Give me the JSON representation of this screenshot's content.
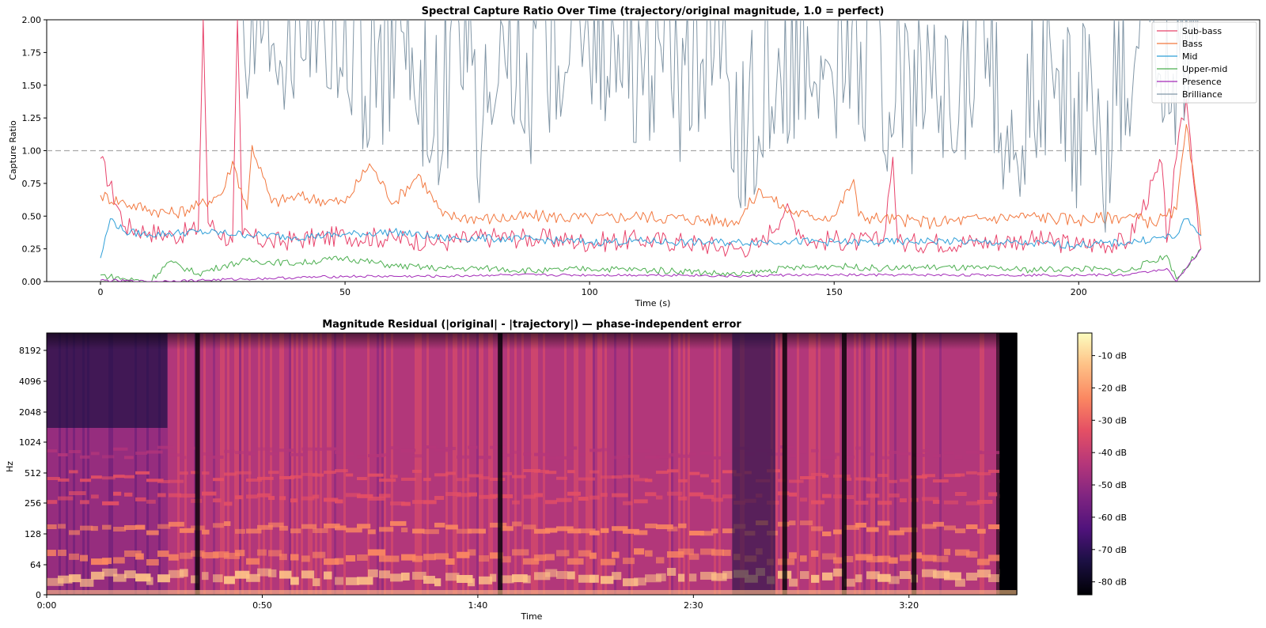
{
  "chart_data": [
    {
      "type": "line",
      "title": "Spectral Capture Ratio Over Time (trajectory/original magnitude, 1.0 = perfect)",
      "xlabel": "Time (s)",
      "ylabel": "Capture Ratio",
      "xlim": [
        -11,
        237
      ],
      "ylim": [
        0,
        2.0
      ],
      "x_ticks": [
        "0",
        "50",
        "100",
        "150",
        "200"
      ],
      "y_ticks": [
        "0.00",
        "0.25",
        "0.50",
        "0.75",
        "1.00",
        "1.25",
        "1.50",
        "1.75",
        "2.00"
      ],
      "reference_line": 1.0,
      "legend_position": "top-right",
      "series": [
        {
          "name": "Sub-bass",
          "color": "#e8436b",
          "x": [
            0,
            5,
            10,
            15,
            20,
            21,
            22,
            27,
            28,
            29,
            35,
            40,
            50,
            60,
            70,
            80,
            90,
            100,
            110,
            120,
            130,
            135,
            140,
            145,
            150,
            155,
            160,
            162,
            163,
            165,
            170,
            180,
            190,
            200,
            210,
            217,
            218,
            220,
            222,
            225
          ],
          "values": [
            0.94,
            0.42,
            0.38,
            0.35,
            0.4,
            2.0,
            0.45,
            0.3,
            2.0,
            0.35,
            0.3,
            0.32,
            0.35,
            0.33,
            0.3,
            0.34,
            0.33,
            0.3,
            0.32,
            0.3,
            0.25,
            0.28,
            0.55,
            0.3,
            0.32,
            0.3,
            0.31,
            0.95,
            0.3,
            0.29,
            0.3,
            0.3,
            0.32,
            0.28,
            0.3,
            0.9,
            0.3,
            0.95,
            1.4,
            0.25
          ]
        },
        {
          "name": "Bass",
          "color": "#f2783f",
          "x": [
            0,
            5,
            10,
            15,
            20,
            25,
            27,
            30,
            31,
            35,
            40,
            50,
            55,
            60,
            65,
            70,
            80,
            90,
            100,
            110,
            120,
            130,
            135,
            140,
            145,
            150,
            154,
            155,
            160,
            170,
            180,
            190,
            200,
            210,
            215,
            218,
            220,
            222,
            225
          ],
          "values": [
            0.66,
            0.6,
            0.55,
            0.52,
            0.58,
            0.68,
            0.92,
            0.55,
            1.04,
            0.6,
            0.65,
            0.6,
            0.9,
            0.6,
            0.82,
            0.5,
            0.48,
            0.5,
            0.48,
            0.5,
            0.48,
            0.46,
            0.7,
            0.55,
            0.5,
            0.5,
            0.78,
            0.5,
            0.48,
            0.45,
            0.48,
            0.5,
            0.47,
            0.5,
            0.45,
            0.5,
            0.55,
            1.2,
            0.35
          ]
        },
        {
          "name": "Mid",
          "color": "#2e9fd8",
          "x": [
            0,
            2,
            5,
            10,
            20,
            30,
            40,
            50,
            60,
            70,
            80,
            90,
            100,
            110,
            120,
            130,
            140,
            150,
            160,
            170,
            180,
            190,
            200,
            210,
            220,
            222,
            225
          ],
          "values": [
            0.18,
            0.48,
            0.38,
            0.36,
            0.38,
            0.36,
            0.34,
            0.36,
            0.38,
            0.33,
            0.33,
            0.32,
            0.3,
            0.31,
            0.3,
            0.3,
            0.31,
            0.3,
            0.3,
            0.31,
            0.3,
            0.29,
            0.28,
            0.3,
            0.35,
            0.48,
            0.35
          ]
        },
        {
          "name": "Upper-mid",
          "color": "#4caf50",
          "x": [
            0,
            5,
            10,
            14,
            20,
            25,
            30,
            40,
            50,
            60,
            70,
            80,
            90,
            100,
            110,
            120,
            130,
            140,
            150,
            160,
            170,
            180,
            190,
            200,
            210,
            218,
            220,
            225
          ],
          "values": [
            0.05,
            0.02,
            0.0,
            0.15,
            0.06,
            0.12,
            0.16,
            0.14,
            0.18,
            0.12,
            0.1,
            0.1,
            0.08,
            0.1,
            0.09,
            0.08,
            0.05,
            0.1,
            0.12,
            0.1,
            0.11,
            0.1,
            0.09,
            0.1,
            0.08,
            0.2,
            0.02,
            0.25
          ]
        },
        {
          "name": "Presence",
          "color": "#a32ab8",
          "x": [
            0,
            10,
            20,
            30,
            40,
            50,
            60,
            70,
            80,
            90,
            100,
            110,
            120,
            130,
            140,
            150,
            160,
            170,
            180,
            190,
            200,
            210,
            215,
            218,
            220,
            225
          ],
          "values": [
            0.01,
            0.0,
            0.01,
            0.02,
            0.03,
            0.04,
            0.04,
            0.04,
            0.05,
            0.05,
            0.05,
            0.05,
            0.05,
            0.04,
            0.05,
            0.05,
            0.05,
            0.05,
            0.05,
            0.05,
            0.05,
            0.05,
            0.08,
            0.1,
            0.0,
            0.25
          ]
        },
        {
          "name": "Brilliance",
          "color": "#8196a6",
          "x": [
            29,
            30,
            32,
            35,
            38,
            40,
            42,
            45,
            48,
            50,
            55,
            60,
            62,
            65,
            70,
            72,
            75,
            77,
            80,
            85,
            88,
            90,
            95,
            98,
            100,
            105,
            108,
            110,
            115,
            118,
            120,
            125,
            128,
            130,
            135,
            140,
            145,
            150,
            155,
            158,
            160,
            163,
            165,
            170,
            175,
            180,
            185,
            188,
            190,
            195,
            200,
            203,
            205,
            210,
            215,
            218,
            222,
            225
          ],
          "values": [
            2.0,
            1.4,
            2.0,
            1.8,
            1.6,
            1.4,
            1.7,
            2.0,
            1.3,
            1.5,
            1.1,
            1.4,
            1.9,
            1.2,
            1.0,
            1.3,
            1.6,
            0.8,
            1.2,
            1.5,
            0.9,
            1.3,
            1.6,
            2.0,
            1.7,
            1.1,
            1.4,
            1.2,
            1.6,
            0.9,
            1.3,
            1.5,
            1.6,
            0.8,
            1.0,
            1.3,
            1.5,
            1.4,
            1.2,
            1.7,
            1.0,
            1.5,
            1.1,
            1.4,
            1.0,
            1.3,
            1.0,
            0.65,
            1.1,
            1.4,
            0.8,
            1.2,
            0.6,
            1.4,
            1.8,
            1.2,
            1.6,
            2.0
          ]
        }
      ]
    },
    {
      "type": "heatmap",
      "title": "Magnitude Residual (|original| - |trajectory|) — phase-independent error",
      "xlabel": "Time",
      "ylabel": "Hz",
      "x_ticks": [
        "0:00",
        "0:50",
        "1:40",
        "2:30",
        "3:20"
      ],
      "y_ticks": [
        "0",
        "64",
        "128",
        "256",
        "512",
        "1024",
        "2048",
        "4096",
        "8192"
      ],
      "colorbar_ticks": [
        "-10 dB",
        "-20 dB",
        "-30 dB",
        "-40 dB",
        "-50 dB",
        "-60 dB",
        "-70 dB",
        "-80 dB"
      ],
      "colorbar_range_db": [
        -84,
        -3
      ],
      "colormap": "magma",
      "dark_columns_s": [
        0.58,
        1.75,
        2.85,
        3.08,
        3.35
      ],
      "duration_s": 225
    }
  ]
}
